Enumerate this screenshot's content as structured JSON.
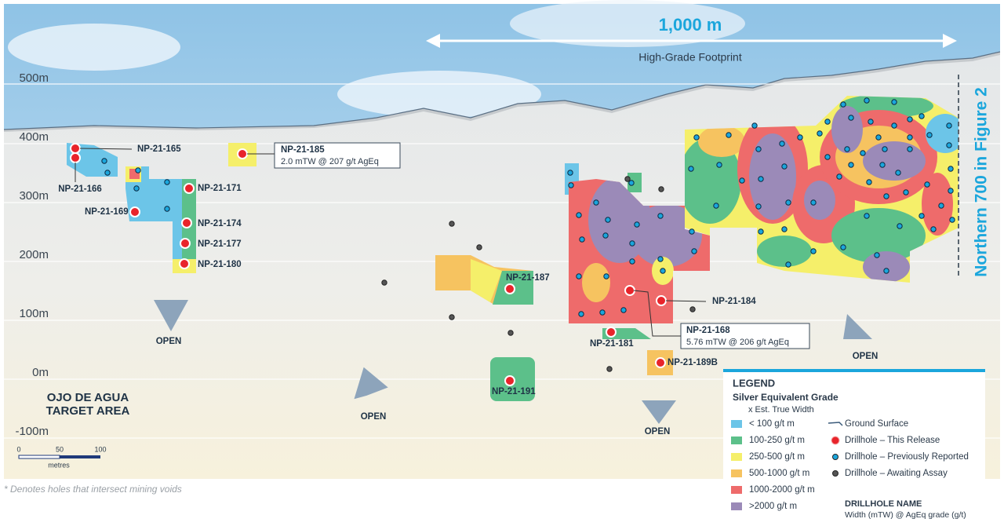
{
  "header": {
    "width_label": "1,000 m",
    "footprint_label": "High-Grade Footprint"
  },
  "elevations": [
    "500m",
    "400m",
    "300m",
    "200m",
    "100m",
    "0m",
    "-100m"
  ],
  "side_label": "Northern 700 in Figure 2",
  "drillholes": [
    "NP-21-165",
    "NP-21-166",
    "NP-21-171",
    "NP-21-169",
    "NP-21-174",
    "NP-21-177",
    "NP-21-180",
    "NP-21-187",
    "NP-21-184",
    "NP-21-181",
    "NP-21-189B",
    "NP-21-191"
  ],
  "callouts": [
    {
      "name": "NP-21-185",
      "detail": "2.0 mTW @ 207 g/t AgEq"
    },
    {
      "name": "NP-21-168",
      "detail": "5.76 mTW @ 206 g/t AgEq"
    }
  ],
  "open_labels": [
    "OPEN",
    "OPEN",
    "OPEN",
    "OPEN"
  ],
  "area_label": [
    "OJO DE AGUA",
    "TARGET AREA"
  ],
  "scale": {
    "ticks": [
      "0",
      "50",
      "100"
    ],
    "unit": "metres"
  },
  "legend": {
    "title": "LEGEND",
    "subtitle": "Silver Equivalent Grade",
    "subtitle2": "x Est. True Width",
    "grades": [
      "< 100 g/t m",
      "100-250 g/t m",
      "250-500 g/t m",
      "500-1000 g/t m",
      "1000-2000 g/t m",
      ">2000 g/t m"
    ],
    "symbols": [
      "Ground Surface",
      "Drillhole – This Release",
      "Drillhole – Previously Reported",
      "Drillhole – Awaiting Assay"
    ],
    "name_title": "DRILLHOLE NAME",
    "name_detail": "Width (mTW) @ AgEq grade (g/t)"
  },
  "footnote": "* Denotes holes that intersect mining voids"
}
